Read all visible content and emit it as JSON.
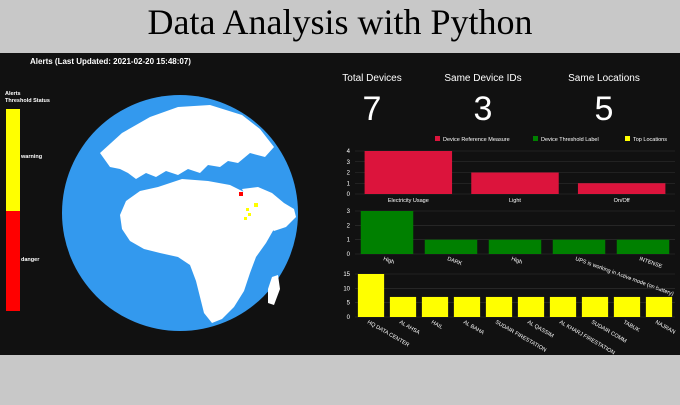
{
  "header": {
    "title": "Data Analysis with Python"
  },
  "alerts": {
    "title": "Alerts (Last Updated: 2021-02-20 15:48:07)",
    "legend_title_line1": "Alerts",
    "legend_title_line2": "Threshold Status",
    "levels": [
      {
        "label": "warning",
        "color": "#ffff00"
      },
      {
        "label": "danger",
        "color": "#ff0000"
      }
    ]
  },
  "kpis": [
    {
      "label": "Total Devices",
      "value": "7"
    },
    {
      "label": "Same Device IDs",
      "value": "3"
    },
    {
      "label": "Same Locations",
      "value": "5"
    }
  ],
  "legend": [
    {
      "name": "Device Reference Measure",
      "color": "#dc143c"
    },
    {
      "name": "Device Threshold Label",
      "color": "#008000"
    },
    {
      "name": "Top Locations",
      "color": "#ffff00"
    }
  ],
  "chart_data": [
    {
      "type": "bar",
      "series_name": "Device Reference Measure",
      "color": "#dc143c",
      "categories": [
        "Electricity Usage",
        "Light",
        "On/Off"
      ],
      "values": [
        4,
        2,
        1
      ],
      "ylim": [
        0,
        4
      ],
      "yticks": [
        0,
        1,
        2,
        3,
        4
      ]
    },
    {
      "type": "bar",
      "series_name": "Device Threshold Label",
      "color": "#008000",
      "categories": [
        "High",
        "DARK",
        "High",
        "UPS is working in Active mode (on battery)",
        "INTENSE"
      ],
      "values": [
        3,
        1,
        1,
        1,
        1
      ],
      "ylim": [
        0,
        3
      ],
      "yticks": [
        0,
        1,
        2,
        3
      ]
    },
    {
      "type": "bar",
      "series_name": "Top Locations",
      "color": "#ffff00",
      "categories": [
        "HQ DATA CENTER",
        "AL AHSA",
        "HAIL",
        "AL BAHA",
        "SUDAIR FIRESTATION",
        "AL QASSIM",
        "AL KHARJ FIRESTATION",
        "SUDAIR COMM",
        "TABUK",
        "NAJRAN"
      ],
      "values": [
        15,
        7,
        7,
        7,
        7,
        7,
        7,
        7,
        7,
        7
      ],
      "ylim": [
        0,
        15
      ],
      "yticks": [
        0,
        5,
        10,
        15
      ]
    }
  ]
}
